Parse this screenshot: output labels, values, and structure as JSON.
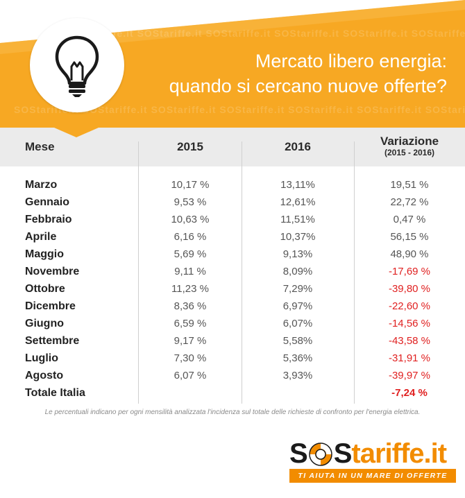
{
  "header": {
    "title_line1": "Mercato libero energia:",
    "title_line2": "quando si cercano nuove offerte?",
    "watermark": "SOStariffe.it",
    "accent_color": "#f7a823",
    "icon": "lightbulb-icon"
  },
  "chart_data": {
    "type": "table",
    "columns": [
      "Mese",
      "2015",
      "2016",
      "Variazione",
      "(2015 - 2016)"
    ],
    "rows": [
      {
        "mese": "Marzo",
        "y2015": "10,17 %",
        "y2016": "13,11%",
        "variazione": "19,51 %",
        "negative": false
      },
      {
        "mese": "Gennaio",
        "y2015": "9,53 %",
        "y2016": "12,61%",
        "variazione": "22,72 %",
        "negative": false
      },
      {
        "mese": "Febbraio",
        "y2015": "10,63 %",
        "y2016": "11,51%",
        "variazione": "0,47 %",
        "negative": false
      },
      {
        "mese": "Aprile",
        "y2015": "6,16 %",
        "y2016": "10,37%",
        "variazione": "56,15 %",
        "negative": false
      },
      {
        "mese": "Maggio",
        "y2015": "5,69 %",
        "y2016": "9,13%",
        "variazione": "48,90 %",
        "negative": false
      },
      {
        "mese": "Novembre",
        "y2015": "9,11 %",
        "y2016": "8,09%",
        "variazione": "-17,69 %",
        "negative": true
      },
      {
        "mese": "Ottobre",
        "y2015": "11,23 %",
        "y2016": "7,29%",
        "variazione": "-39,80 %",
        "negative": true
      },
      {
        "mese": "Dicembre",
        "y2015": "8,36 %",
        "y2016": "6,97%",
        "variazione": "-22,60 %",
        "negative": true
      },
      {
        "mese": "Giugno",
        "y2015": "6,59 %",
        "y2016": "6,07%",
        "variazione": "-14,56 %",
        "negative": true
      },
      {
        "mese": "Settembre",
        "y2015": "9,17 %",
        "y2016": "5,58%",
        "variazione": "-43,58 %",
        "negative": true
      },
      {
        "mese": "Luglio",
        "y2015": "7,30 %",
        "y2016": "5,36%",
        "variazione": "-31,91 %",
        "negative": true
      },
      {
        "mese": "Agosto",
        "y2015": "6,07 %",
        "y2016": "3,93%",
        "variazione": "-39,97 %",
        "negative": true
      },
      {
        "mese": "Totale Italia",
        "y2015": "",
        "y2016": "",
        "variazione": "-7,24 %",
        "negative": true,
        "total": true
      }
    ],
    "negative_color": "#e02020"
  },
  "footnote": "Le percentuali indicano per ogni mensilità analizzata l'incidenza sul totale delle richieste di confronto per l'energia elettrica.",
  "logo": {
    "part1": "S",
    "part2": "S",
    "part3": "tariffe.it",
    "tagline": "TI AIUTA IN UN MARE DI OFFERTE",
    "icon": "lifebuoy-icon",
    "brand_color": "#f28c00"
  }
}
